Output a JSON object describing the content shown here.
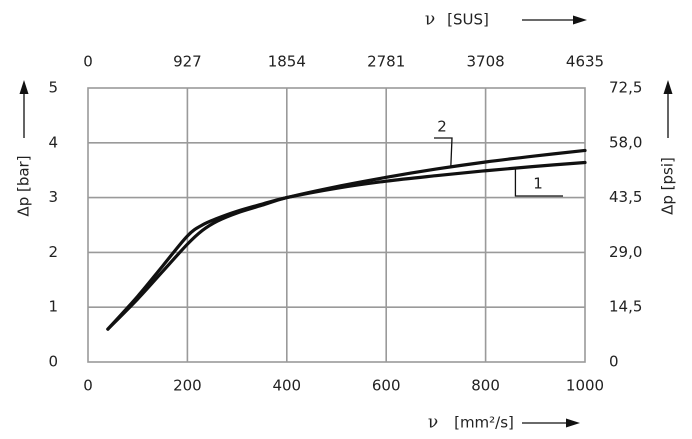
{
  "chart_data": {
    "type": "line",
    "x_bottom": {
      "label_symbol": "ν",
      "label_unit": "[mm²/s]",
      "ticks": [
        "0",
        "200",
        "400",
        "600",
        "800",
        "1000"
      ],
      "range": [
        0,
        1000
      ]
    },
    "x_top": {
      "label_symbol": "ν",
      "label_unit": "[SUS]",
      "ticks": [
        "0",
        "927",
        "1854",
        "2781",
        "3708",
        "4635"
      ]
    },
    "y_left": {
      "label": "Δp [bar]",
      "ticks": [
        "0",
        "1",
        "2",
        "3",
        "4",
        "5"
      ],
      "range": [
        0,
        5
      ]
    },
    "y_right": {
      "label": "Δp [psi]",
      "ticks": [
        "0",
        "14,5",
        "29,0",
        "43,5",
        "58,0",
        "72,5"
      ]
    },
    "grid": true,
    "series": [
      {
        "name": "1",
        "x": [
          40,
          100,
          150,
          200,
          230,
          260,
          300,
          350,
          400,
          500,
          600,
          700,
          800,
          900,
          1000
        ],
        "y": [
          0.6,
          1.2,
          1.75,
          2.3,
          2.5,
          2.62,
          2.75,
          2.88,
          3.0,
          3.17,
          3.3,
          3.4,
          3.49,
          3.57,
          3.64
        ]
      },
      {
        "name": "2",
        "x": [
          40,
          100,
          150,
          200,
          230,
          260,
          300,
          350,
          400,
          500,
          600,
          700,
          800,
          900,
          1000
        ],
        "y": [
          0.6,
          1.15,
          1.65,
          2.15,
          2.4,
          2.57,
          2.72,
          2.86,
          3.0,
          3.2,
          3.37,
          3.52,
          3.65,
          3.76,
          3.86
        ]
      }
    ]
  }
}
